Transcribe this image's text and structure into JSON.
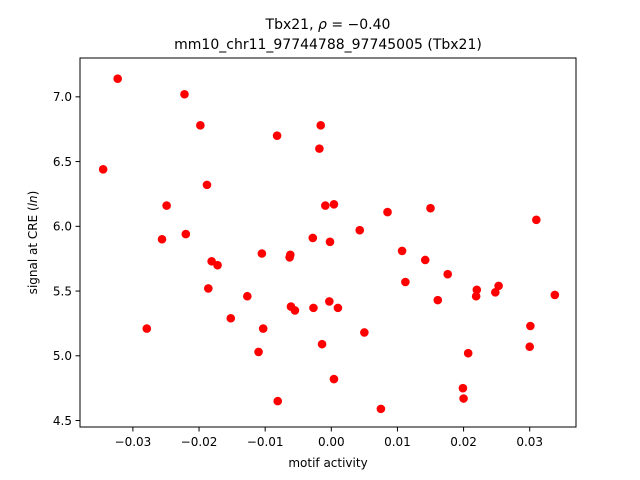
{
  "chart_data": {
    "type": "scatter",
    "title_line1_prefix": "Tbx21, ",
    "title_line1_rho": "ρ",
    "title_line1_value": " = −0.40",
    "title_line2": "mm10_chr11_97744788_97745005 (Tbx21)",
    "xlabel": "motif activity",
    "ylabel_prefix": "signal at CRE (",
    "ylabel_italic": "ln",
    "ylabel_suffix": ")",
    "xlim": [
      -0.038,
      0.037
    ],
    "ylim": [
      4.45,
      7.3
    ],
    "x_ticks": [
      -0.03,
      -0.02,
      -0.01,
      0.0,
      0.01,
      0.02,
      0.03
    ],
    "x_tick_labels": [
      "−0.03",
      "−0.02",
      "−0.01",
      "0.00",
      "0.01",
      "0.02",
      "0.03"
    ],
    "y_ticks": [
      4.5,
      5.0,
      5.5,
      6.0,
      6.5,
      7.0
    ],
    "y_tick_labels": [
      "4.5",
      "5.0",
      "5.5",
      "6.0",
      "6.5",
      "7.0"
    ],
    "marker_color": "#ff0000",
    "grid": false,
    "points": [
      {
        "x": -0.0345,
        "y": 6.44
      },
      {
        "x": -0.0323,
        "y": 7.14
      },
      {
        "x": -0.0279,
        "y": 5.21
      },
      {
        "x": -0.0256,
        "y": 5.9
      },
      {
        "x": -0.0249,
        "y": 6.16
      },
      {
        "x": -0.0222,
        "y": 7.02
      },
      {
        "x": -0.022,
        "y": 5.94
      },
      {
        "x": -0.0198,
        "y": 6.78
      },
      {
        "x": -0.0188,
        "y": 6.32
      },
      {
        "x": -0.0186,
        "y": 5.52
      },
      {
        "x": -0.0181,
        "y": 5.73
      },
      {
        "x": -0.0172,
        "y": 5.7
      },
      {
        "x": -0.0152,
        "y": 5.29
      },
      {
        "x": -0.0127,
        "y": 5.46
      },
      {
        "x": -0.011,
        "y": 5.03
      },
      {
        "x": -0.0105,
        "y": 5.79
      },
      {
        "x": -0.0103,
        "y": 5.21
      },
      {
        "x": -0.0082,
        "y": 6.7
      },
      {
        "x": -0.0081,
        "y": 4.65
      },
      {
        "x": -0.0063,
        "y": 5.76
      },
      {
        "x": -0.0062,
        "y": 5.78
      },
      {
        "x": -0.0061,
        "y": 5.38
      },
      {
        "x": -0.0055,
        "y": 5.35
      },
      {
        "x": -0.0028,
        "y": 5.91
      },
      {
        "x": -0.0027,
        "y": 5.37
      },
      {
        "x": -0.0018,
        "y": 6.6
      },
      {
        "x": -0.0016,
        "y": 6.78
      },
      {
        "x": -0.0014,
        "y": 5.09
      },
      {
        "x": -0.0009,
        "y": 6.16
      },
      {
        "x": -0.0003,
        "y": 5.42
      },
      {
        "x": -0.0002,
        "y": 5.88
      },
      {
        "x": 0.0004,
        "y": 6.17
      },
      {
        "x": 0.0004,
        "y": 4.82
      },
      {
        "x": 0.001,
        "y": 5.37
      },
      {
        "x": 0.0043,
        "y": 5.97
      },
      {
        "x": 0.005,
        "y": 5.18
      },
      {
        "x": 0.0075,
        "y": 4.59
      },
      {
        "x": 0.0085,
        "y": 6.11
      },
      {
        "x": 0.0107,
        "y": 5.81
      },
      {
        "x": 0.0112,
        "y": 5.57
      },
      {
        "x": 0.0142,
        "y": 5.74
      },
      {
        "x": 0.015,
        "y": 6.14
      },
      {
        "x": 0.0161,
        "y": 5.43
      },
      {
        "x": 0.0176,
        "y": 5.63
      },
      {
        "x": 0.0199,
        "y": 4.75
      },
      {
        "x": 0.02,
        "y": 4.67
      },
      {
        "x": 0.0207,
        "y": 5.02
      },
      {
        "x": 0.0219,
        "y": 5.46
      },
      {
        "x": 0.022,
        "y": 5.51
      },
      {
        "x": 0.0248,
        "y": 5.49
      },
      {
        "x": 0.0253,
        "y": 5.54
      },
      {
        "x": 0.03,
        "y": 5.07
      },
      {
        "x": 0.0301,
        "y": 5.23
      },
      {
        "x": 0.031,
        "y": 6.05
      },
      {
        "x": 0.0338,
        "y": 5.47
      }
    ]
  }
}
